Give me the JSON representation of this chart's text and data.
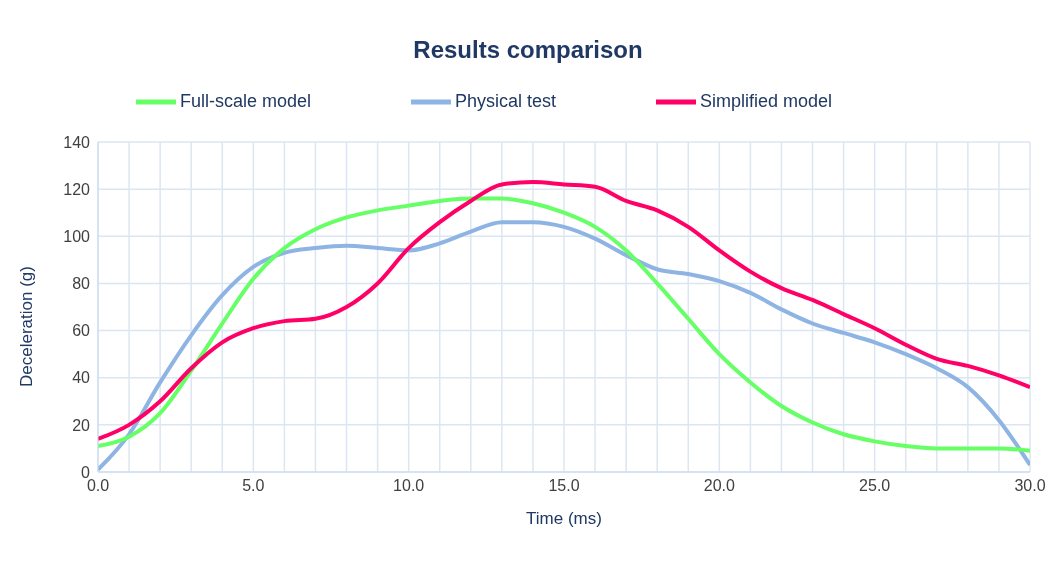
{
  "chart_data": {
    "type": "line",
    "title": "Results comparison",
    "xlabel": "Time (ms)",
    "ylabel": "Deceleration (g)",
    "x": [
      0,
      1,
      2,
      3,
      4,
      5,
      6,
      7,
      8,
      9,
      10,
      11,
      12,
      13,
      14,
      15,
      16,
      17,
      18,
      19,
      20,
      21,
      22,
      23,
      24,
      25,
      26,
      27,
      28,
      29,
      30
    ],
    "series": [
      {
        "name": "Physical test",
        "color": "#8eb4e3",
        "values": [
          1,
          16,
          38,
          58,
          75,
          87,
          93,
          95,
          96,
          95,
          94,
          97,
          102,
          106,
          106,
          104,
          99,
          92,
          86,
          84,
          81,
          76,
          69,
          63,
          59,
          55,
          50,
          44,
          36,
          22,
          3
        ]
      },
      {
        "name": "Full-scale model",
        "color": "#66ff66",
        "values": [
          11,
          15,
          25,
          43,
          63,
          82,
          95,
          103,
          108,
          111,
          113,
          115,
          116,
          116,
          114,
          110,
          104,
          94,
          80,
          65,
          50,
          38,
          28,
          21,
          16,
          13,
          11,
          10,
          10,
          10,
          9
        ]
      },
      {
        "name": "Simplified model",
        "color": "#ff0066",
        "values": [
          14,
          20,
          30,
          44,
          55,
          61,
          64,
          65,
          70,
          80,
          95,
          106,
          115,
          122,
          123,
          122,
          121,
          115,
          111,
          104,
          94,
          85,
          78,
          73,
          67,
          61,
          54,
          48,
          45,
          41,
          36
        ]
      }
    ],
    "xlim": [
      0,
      30
    ],
    "xticks": [
      {
        "value": 0,
        "label": "0.0"
      },
      {
        "value": 1,
        "label": null
      },
      {
        "value": 2,
        "label": null
      },
      {
        "value": 3,
        "label": null
      },
      {
        "value": 4,
        "label": null
      },
      {
        "value": 5,
        "label": "5.0"
      },
      {
        "value": 6,
        "label": null
      },
      {
        "value": 7,
        "label": null
      },
      {
        "value": 8,
        "label": null
      },
      {
        "value": 9,
        "label": null
      },
      {
        "value": 10,
        "label": "10.0"
      },
      {
        "value": 11,
        "label": null
      },
      {
        "value": 12,
        "label": null
      },
      {
        "value": 13,
        "label": null
      },
      {
        "value": 14,
        "label": null
      },
      {
        "value": 15,
        "label": "15.0"
      },
      {
        "value": 16,
        "label": null
      },
      {
        "value": 17,
        "label": null
      },
      {
        "value": 18,
        "label": null
      },
      {
        "value": 19,
        "label": null
      },
      {
        "value": 20,
        "label": "20.0"
      },
      {
        "value": 21,
        "label": null
      },
      {
        "value": 22,
        "label": null
      },
      {
        "value": 23,
        "label": null
      },
      {
        "value": 24,
        "label": null
      },
      {
        "value": 25,
        "label": "25.0"
      },
      {
        "value": 26,
        "label": null
      },
      {
        "value": 27,
        "label": null
      },
      {
        "value": 28,
        "label": null
      },
      {
        "value": 29,
        "label": null
      },
      {
        "value": 30,
        "label": "30.0"
      }
    ],
    "ylim": [
      0,
      140
    ],
    "yticks": [
      0,
      20,
      40,
      60,
      80,
      100,
      120,
      140
    ],
    "grid": true,
    "legend": "top",
    "marker": "none",
    "line_style": "solid"
  }
}
